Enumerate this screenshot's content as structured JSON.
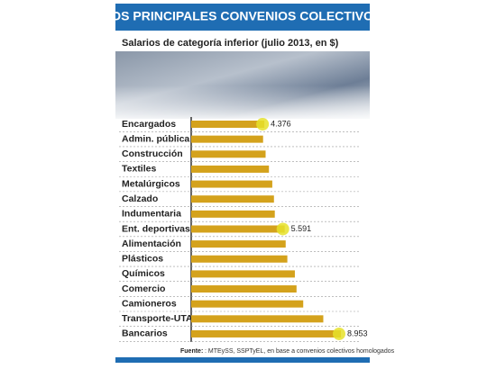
{
  "chart_data": {
    "type": "bar",
    "orientation": "horizontal",
    "title": "LOS PRINCIPALES CONVENIOS COLECTIVOS",
    "subtitle": "Salarios de categoría inferior (julio 2013, en $)",
    "categories": [
      "Encargados",
      "Admin. pública",
      "Construcción",
      "Textiles",
      "Metalúrgicos",
      "Calzado",
      "Indumentaria",
      "Ent. deportivas",
      "Alimentación",
      "Plásticos",
      "Químicos",
      "Comercio",
      "Camioneros",
      "Transporte-UTA",
      "Bancarios"
    ],
    "values": [
      4376,
      4300,
      4450,
      4650,
      4850,
      4950,
      5000,
      5591,
      5650,
      5750,
      6200,
      6300,
      6700,
      7900,
      8953
    ],
    "value_labels": [
      "4.376",
      null,
      null,
      null,
      null,
      null,
      null,
      "5.591",
      null,
      null,
      null,
      null,
      null,
      null,
      "8.953"
    ],
    "color": "#d4a21c",
    "highlight_color": "#e6e22a",
    "source_label": "Fuente:",
    "source": ": MTEySS, SSPTyEL, en base a convenios colectivos homologados"
  }
}
